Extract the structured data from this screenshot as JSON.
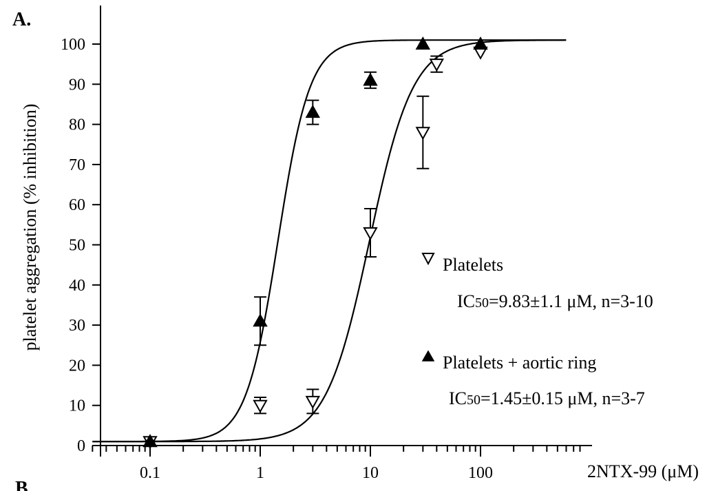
{
  "panel_label": "A.",
  "cut_label": "B",
  "chart_data": {
    "type": "scatter",
    "title": "",
    "xlabel": "2NTX-99 (μM)",
    "ylabel": "platelet aggregation (% inhibition)",
    "x_scale": "log",
    "xlim": [
      0.03,
      1000
    ],
    "ylim": [
      0,
      100
    ],
    "x_ticks": [
      "0.1",
      "1",
      "10",
      "100"
    ],
    "y_ticks": [
      "0",
      "10",
      "20",
      "30",
      "40",
      "50",
      "60",
      "70",
      "80",
      "90",
      "100"
    ],
    "grid": false,
    "legend_position": "right",
    "series": [
      {
        "name": "Platelets",
        "marker": "open-down-triangle",
        "annotation": "IC50=9.83±1.1 μM, n=3-10",
        "annotation_prefix": "IC",
        "annotation_sub": "50",
        "annotation_rest": "=9.83±1.1 μM, n=3-10",
        "points": [
          {
            "x": 0.1,
            "y": 1,
            "err": 0
          },
          {
            "x": 1,
            "y": 10,
            "err": 2
          },
          {
            "x": 3,
            "y": 11,
            "err": 3
          },
          {
            "x": 10,
            "y": 53,
            "err": 6
          },
          {
            "x": 30,
            "y": 78,
            "err": 9
          },
          {
            "x": 40,
            "y": 95,
            "err": 2
          },
          {
            "x": 100,
            "y": 98,
            "err": 0
          }
        ],
        "fit": {
          "ic50": 9.83,
          "hill": 2.2,
          "bottom": 1,
          "top": 101
        }
      },
      {
        "name": "Platelets +  aortic ring",
        "marker": "filled-up-triangle",
        "annotation": "IC50=1.45±0.15 μM, n=3-7",
        "annotation_prefix": "IC",
        "annotation_sub": "50",
        "annotation_rest": "=1.45±0.15 μM, n=3-7",
        "points": [
          {
            "x": 0.1,
            "y": 1,
            "err": 0
          },
          {
            "x": 1,
            "y": 31,
            "err": 6
          },
          {
            "x": 3,
            "y": 83,
            "err": 3
          },
          {
            "x": 10,
            "y": 91,
            "err": 2
          },
          {
            "x": 30,
            "y": 100,
            "err": 0
          },
          {
            "x": 100,
            "y": 100,
            "err": 0
          }
        ],
        "fit": {
          "ic50": 1.45,
          "hill": 3.0,
          "bottom": 1,
          "top": 101
        }
      }
    ]
  }
}
